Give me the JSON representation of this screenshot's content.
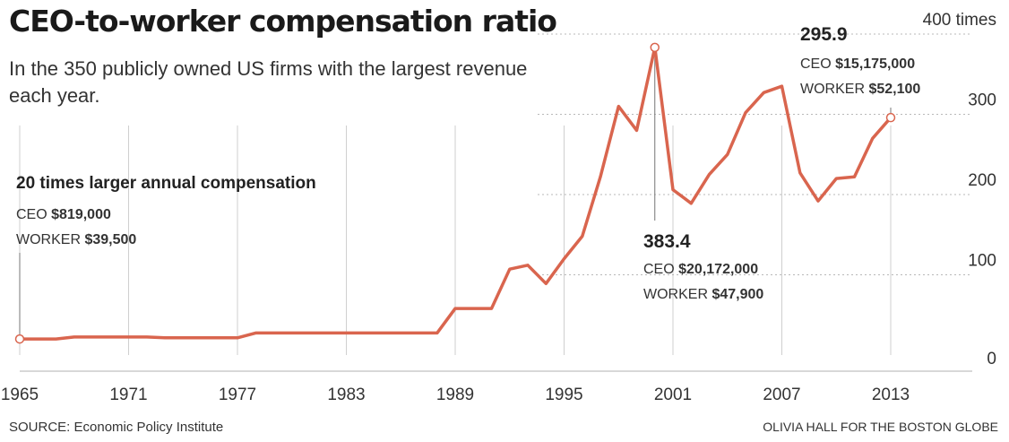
{
  "title": "CEO-to-worker compensation ratio",
  "subtitle": "In the 350 publicly owned US firms with the largest revenue each year.",
  "source": "SOURCE: Economic Policy Institute",
  "credit": "OLIVIA HALL FOR THE BOSTON GLOBE",
  "chart_data": {
    "type": "line",
    "title": "CEO-to-worker compensation ratio",
    "xlim": [
      1965,
      2013
    ],
    "ylim": [
      0,
      400
    ],
    "grid": true,
    "x_ticks": [
      "1965",
      "1971",
      "1977",
      "1983",
      "1989",
      "1995",
      "2001",
      "2007",
      "2013"
    ],
    "x_tick_values": [
      1965,
      1971,
      1977,
      1983,
      1989,
      1995,
      2001,
      2007,
      2013
    ],
    "y_ticks": [
      {
        "value": 0,
        "label": "0"
      },
      {
        "value": 100,
        "label": "100"
      },
      {
        "value": 200,
        "label": "200"
      },
      {
        "value": 300,
        "label": "300"
      },
      {
        "value": 400,
        "label": "400 times"
      }
    ],
    "color": "#d9654e",
    "series": [
      {
        "x": [
          1965,
          1966,
          1967,
          1968,
          1969,
          1970,
          1971,
          1972,
          1973,
          1974,
          1975,
          1976,
          1977,
          1978,
          1979,
          1980,
          1981,
          1982,
          1983,
          1984,
          1985,
          1986,
          1987,
          1988,
          1989,
          1990,
          1991,
          1992,
          1993,
          1994,
          1995,
          1996,
          1997,
          1998,
          1999,
          2000,
          2001,
          2002,
          2003,
          2004,
          2005,
          2006,
          2007,
          2008,
          2009,
          2010,
          2011,
          2012,
          2013
        ],
        "values": [
          20.0,
          20.0,
          20.0,
          22.5,
          22.5,
          22.5,
          22.5,
          22.5,
          21.5,
          21.5,
          21.5,
          21.5,
          21.5,
          27.5,
          27.5,
          27.5,
          27.5,
          27.5,
          27.5,
          27.5,
          27.5,
          27.5,
          27.5,
          27.5,
          58.0,
          58.0,
          58.0,
          107.0,
          112.0,
          89.0,
          120.0,
          148.0,
          222.0,
          310.0,
          280.0,
          383.4,
          206.0,
          189.0,
          225.0,
          250.0,
          302.0,
          327.0,
          335.0,
          227.0,
          192.0,
          220.0,
          222.0,
          270.0,
          295.9
        ]
      }
    ],
    "annotations": [
      {
        "x": 1965,
        "y": 20.0,
        "headline": "20 times larger annual compensation",
        "ceo_label": "CEO",
        "ceo_value": "$819,000",
        "worker_label": "WORKER",
        "worker_value": "$39,500"
      },
      {
        "x": 2000,
        "y": 383.4,
        "value": "383.4",
        "ceo_label": "CEO",
        "ceo_value": "$20,172,000",
        "worker_label": "WORKER",
        "worker_value": "$47,900"
      },
      {
        "x": 2013,
        "y": 295.9,
        "value": "295.9",
        "ceo_label": "CEO",
        "ceo_value": "$15,175,000",
        "worker_label": "WORKER",
        "worker_value": "$52,100"
      }
    ]
  }
}
